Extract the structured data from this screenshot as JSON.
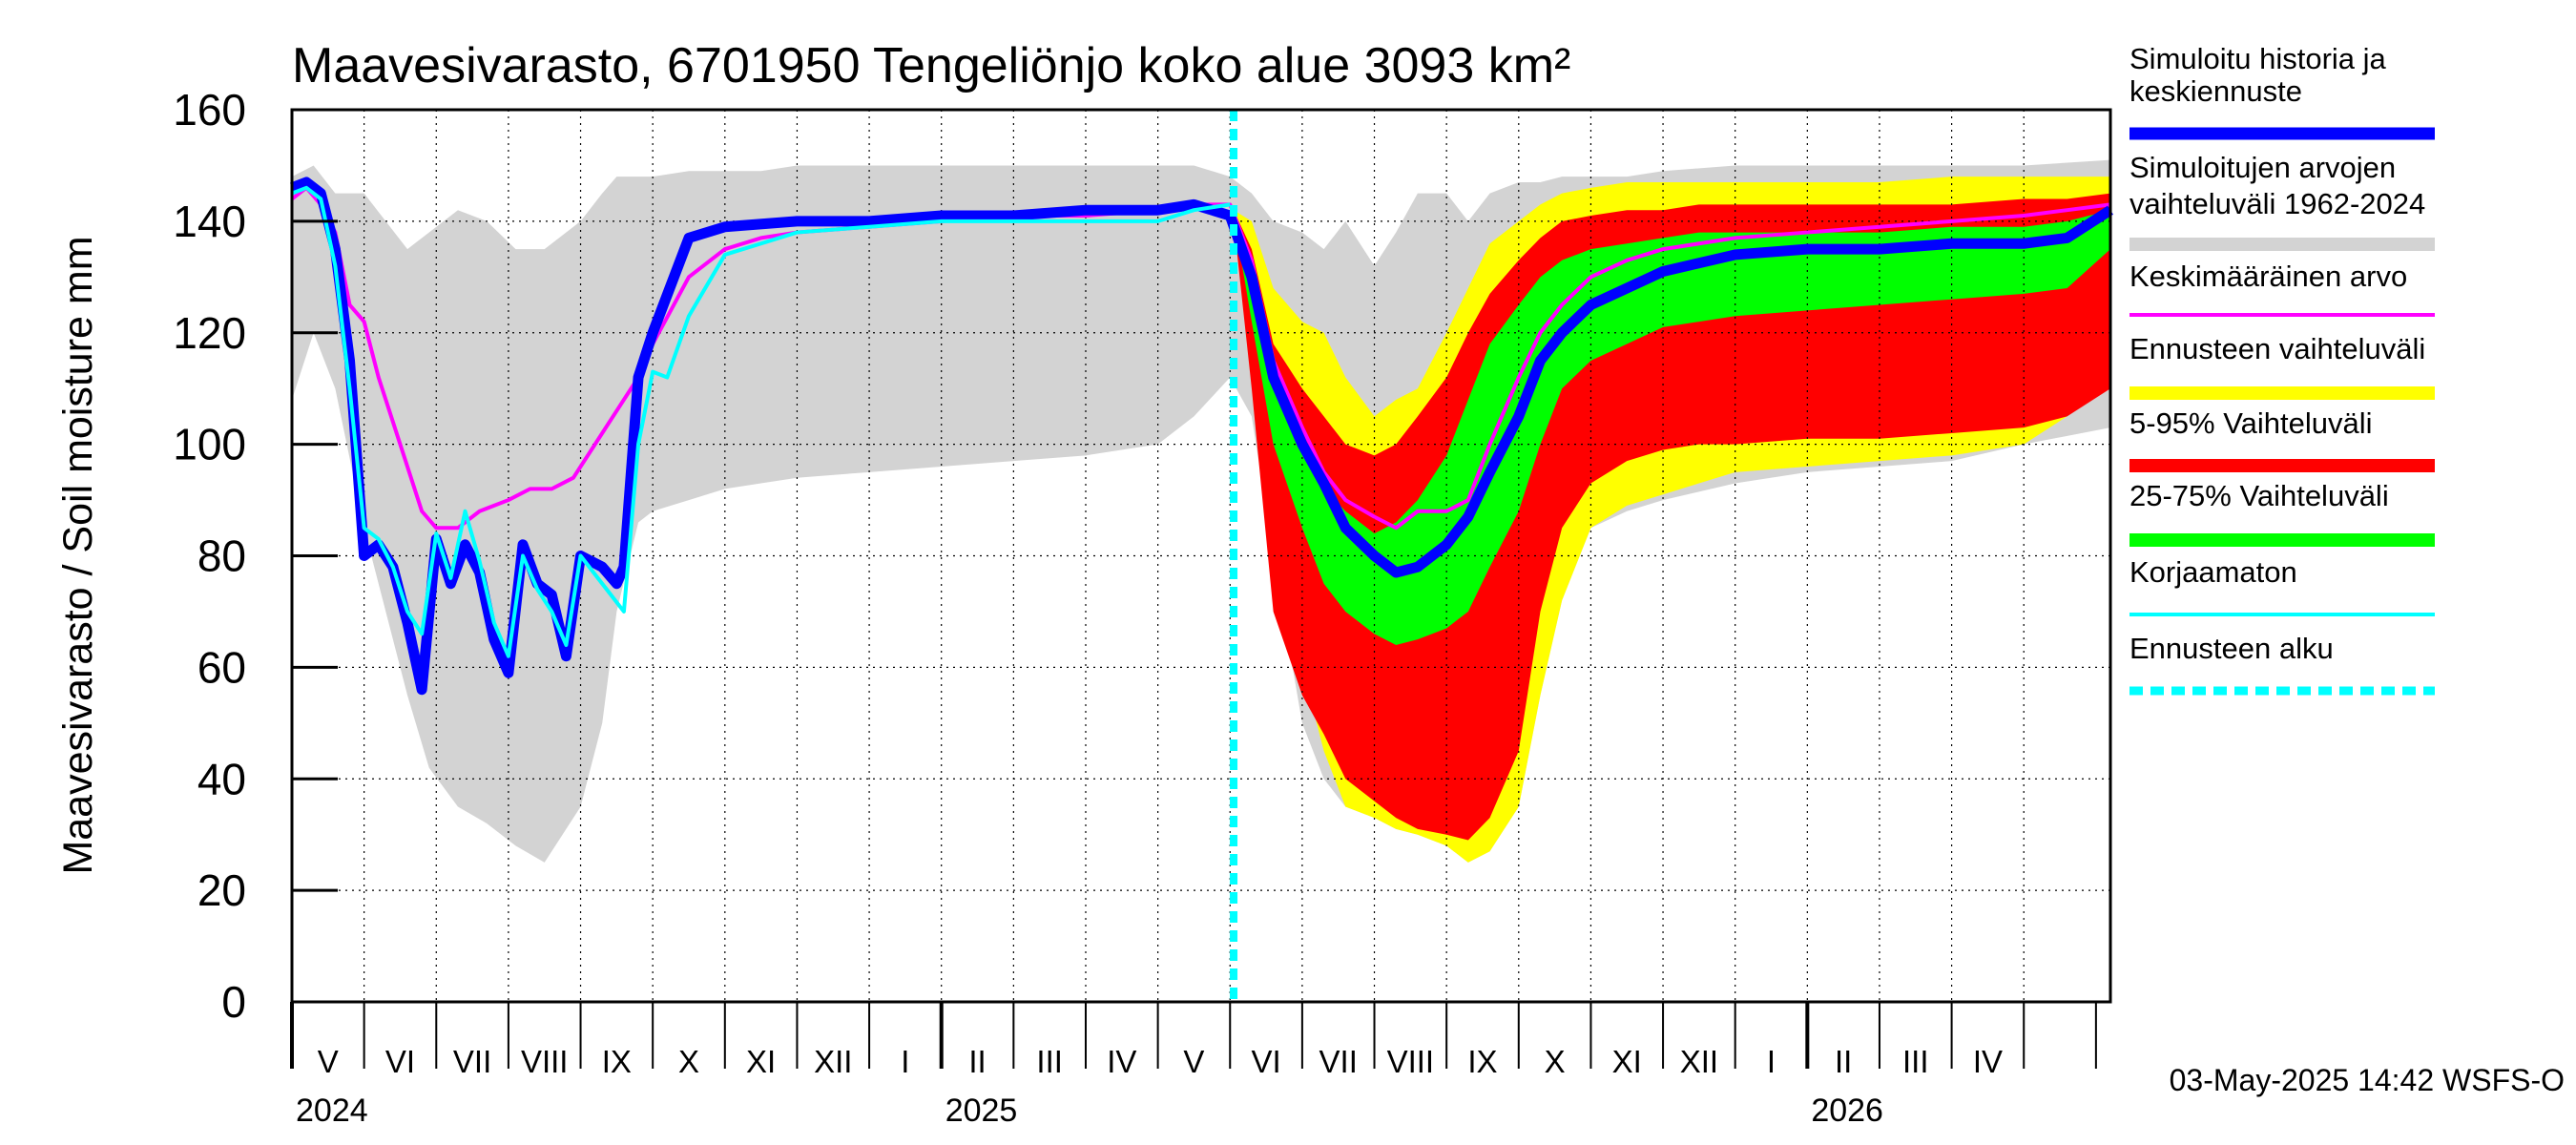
{
  "chart_data": {
    "type": "area",
    "title": "Maavesivarasto, 6701950 Tengeliönjo koko alue 3093 km²",
    "ylabel": "Maavesivarasto / Soil moisture   mm",
    "xlabel": "",
    "ylim": [
      0,
      160
    ],
    "yticks": [
      0,
      20,
      40,
      60,
      80,
      100,
      120,
      140,
      160
    ],
    "grid": true,
    "x_unit": "months since 2024-04-01",
    "xlim": [
      0,
      25.2
    ],
    "forecast_start": 13.05,
    "month_labels": [
      "V",
      "VI",
      "VII",
      "VIII",
      "IX",
      "X",
      "XI",
      "XII",
      "I",
      "II",
      "III",
      "IV",
      "V",
      "VI",
      "VII",
      "VIII",
      "IX",
      "X",
      "XI",
      "XII",
      "I",
      "II",
      "III",
      "IV"
    ],
    "year_labels": [
      {
        "label": "2024",
        "x": 0
      },
      {
        "label": "2025",
        "x": 9
      },
      {
        "label": "2026",
        "x": 21
      }
    ],
    "timestamp": "03-May-2025 14:42 WSFS-O",
    "colors": {
      "history_range": "#d3d3d3",
      "forecast_range": "#ffff00",
      "p5_95": "#ff0000",
      "p25_75": "#00ff00",
      "mean": "#ff00ff",
      "uncorrected": "#00ffff",
      "simulated": "#0000ff"
    },
    "legend": [
      {
        "key": "simulated",
        "label": "Simuloitu historia ja keskiennuste",
        "label_lines": [
          "Simuloitu historia ja",
          "keskiennuste"
        ],
        "style": "thick"
      },
      {
        "key": "history_range",
        "label": "Simuloitujen arvojen vaihteluväli 1962-2024",
        "label_lines": [
          "Simuloitujen arvojen",
          "vaihteluväli 1962-2024"
        ],
        "style": "band"
      },
      {
        "key": "mean",
        "label": "Keskimääräinen arvo",
        "label_lines": [
          "Keskimääräinen arvo"
        ],
        "style": "thin"
      },
      {
        "key": "forecast_range",
        "label": "Ennusteen vaihteluväli",
        "label_lines": [
          "Ennusteen vaihteluväli"
        ],
        "style": "band"
      },
      {
        "key": "p5_95",
        "label": "5-95% Vaihteluväli",
        "label_lines": [
          "5-95% Vaihteluväli"
        ],
        "style": "band"
      },
      {
        "key": "p25_75",
        "label": "25-75% Vaihteluväli",
        "label_lines": [
          "25-75% Vaihteluväli"
        ],
        "style": "band"
      },
      {
        "key": "uncorrected",
        "label": "Korjaamaton",
        "label_lines": [
          "Korjaamaton"
        ],
        "style": "thin"
      },
      {
        "key": "forecast_start",
        "label": "Ennusteen alku",
        "label_lines": [
          "Ennusteen alku"
        ],
        "style": "dashed"
      }
    ],
    "series": {
      "history_range": {
        "x": [
          0,
          0.3,
          0.6,
          1.0,
          1.3,
          1.6,
          1.9,
          2.3,
          2.7,
          3.1,
          3.5,
          4.0,
          4.3,
          4.5,
          4.8,
          5.0,
          5.5,
          6.0,
          6.5,
          7.0,
          8.0,
          9.0,
          10.0,
          11.0,
          12.0,
          12.5,
          13.0,
          13.3,
          13.6,
          14.0,
          14.3,
          14.6,
          15.0,
          15.3,
          15.6,
          16.0,
          16.3,
          16.6,
          17.0,
          17.3,
          17.6,
          18.0,
          18.5,
          19.0,
          20.0,
          21.0,
          22.0,
          23.0,
          24.0,
          25.2
        ],
        "lower": [
          108,
          120,
          110,
          85,
          70,
          55,
          42,
          35,
          32,
          28,
          25,
          35,
          50,
          70,
          86,
          88,
          90,
          92,
          93,
          94,
          95,
          96,
          97,
          98,
          100,
          105,
          112,
          105,
          80,
          50,
          40,
          35,
          33,
          31,
          30,
          28,
          25,
          27,
          35,
          55,
          72,
          85,
          88,
          90,
          93,
          95,
          96,
          97,
          100,
          103
        ],
        "upper": [
          148,
          150,
          145,
          145,
          140,
          135,
          138,
          142,
          140,
          135,
          135,
          140,
          145,
          148,
          148,
          148,
          149,
          149,
          149,
          150,
          150,
          150,
          150,
          150,
          150,
          150,
          148,
          145,
          140,
          138,
          135,
          140,
          132,
          138,
          145,
          145,
          140,
          145,
          147,
          147,
          148,
          148,
          148,
          149,
          150,
          150,
          150,
          150,
          150,
          151
        ]
      },
      "forecast_range": {
        "x": [
          13.05,
          13.3,
          13.6,
          14.0,
          14.3,
          14.6,
          15.0,
          15.3,
          15.6,
          16.0,
          16.3,
          16.6,
          17.0,
          17.3,
          17.6,
          18.0,
          18.5,
          19.0,
          19.5,
          20.0,
          21.0,
          22.0,
          23.0,
          24.0,
          24.6,
          25.2
        ],
        "lower": [
          140,
          120,
          85,
          60,
          45,
          35,
          33,
          31,
          30,
          28,
          25,
          27,
          35,
          55,
          72,
          85,
          89,
          91,
          93,
          95,
          96,
          97,
          98,
          100,
          105,
          120
        ],
        "upper": [
          142,
          140,
          128,
          122,
          120,
          112,
          105,
          108,
          110,
          120,
          128,
          136,
          140,
          143,
          145,
          146,
          147,
          147,
          147,
          147,
          147,
          147,
          148,
          148,
          148,
          148
        ]
      },
      "p5_95": {
        "x": [
          13.05,
          13.3,
          13.6,
          14.0,
          14.3,
          14.6,
          15.0,
          15.3,
          15.6,
          16.0,
          16.3,
          16.6,
          17.0,
          17.3,
          17.6,
          18.0,
          18.5,
          19.0,
          19.5,
          20.0,
          21.0,
          22.0,
          23.0,
          24.0,
          24.6,
          25.2
        ],
        "lower": [
          140,
          110,
          70,
          55,
          48,
          40,
          36,
          33,
          31,
          30,
          29,
          33,
          45,
          70,
          85,
          93,
          97,
          99,
          100,
          100,
          101,
          101,
          102,
          103,
          105,
          110
        ],
        "upper": [
          142,
          135,
          118,
          110,
          105,
          100,
          98,
          100,
          105,
          112,
          120,
          127,
          133,
          137,
          140,
          141,
          142,
          142,
          143,
          143,
          143,
          143,
          143,
          144,
          144,
          145
        ]
      },
      "p25_75": {
        "x": [
          13.05,
          13.3,
          13.6,
          14.0,
          14.3,
          14.6,
          15.0,
          15.3,
          15.6,
          16.0,
          16.3,
          16.6,
          17.0,
          17.3,
          17.6,
          18.0,
          18.5,
          19.0,
          19.5,
          20.0,
          21.0,
          22.0,
          23.0,
          24.0,
          24.6,
          25.2
        ],
        "lower": [
          141,
          122,
          100,
          85,
          75,
          70,
          66,
          64,
          65,
          67,
          70,
          78,
          88,
          100,
          110,
          115,
          118,
          121,
          122,
          123,
          124,
          125,
          126,
          127,
          128,
          135
        ],
        "upper": [
          142,
          132,
          112,
          100,
          92,
          88,
          84,
          86,
          90,
          98,
          108,
          118,
          125,
          130,
          133,
          135,
          136,
          137,
          138,
          138,
          138,
          138,
          139,
          139,
          140,
          142
        ]
      },
      "simulated": {
        "x": [
          0,
          0.2,
          0.4,
          0.6,
          0.8,
          1.0,
          1.2,
          1.4,
          1.6,
          1.8,
          2.0,
          2.2,
          2.4,
          2.6,
          2.8,
          3.0,
          3.2,
          3.4,
          3.6,
          3.8,
          4.0,
          4.3,
          4.5,
          4.6,
          4.8,
          5.0,
          5.5,
          6.0,
          7.0,
          8.0,
          9.0,
          10.0,
          11.0,
          12.0,
          12.5,
          13.0,
          13.3,
          13.6,
          14.0,
          14.3,
          14.6,
          15.0,
          15.3,
          15.6,
          16.0,
          16.3,
          16.6,
          17.0,
          17.3,
          17.6,
          18.0,
          19.0,
          20.0,
          21.0,
          22.0,
          23.0,
          24.0,
          24.6,
          25.2
        ],
        "y": [
          146,
          147,
          145,
          135,
          115,
          80,
          82,
          78,
          68,
          56,
          83,
          75,
          82,
          77,
          65,
          59,
          82,
          75,
          73,
          62,
          80,
          78,
          75,
          78,
          112,
          120,
          137,
          139,
          140,
          140,
          141,
          141,
          142,
          142,
          143,
          141,
          130,
          112,
          100,
          93,
          85,
          80,
          77,
          78,
          82,
          87,
          95,
          105,
          115,
          120,
          125,
          131,
          134,
          135,
          135,
          136,
          136,
          137,
          142
        ]
      },
      "mean": {
        "x": [
          0,
          0.2,
          0.4,
          0.6,
          0.8,
          1.0,
          1.2,
          1.5,
          1.8,
          2.0,
          2.3,
          2.6,
          3.0,
          3.3,
          3.6,
          3.9,
          4.2,
          4.5,
          4.8,
          5.0,
          5.5,
          6.0,
          6.5,
          7.0,
          8.0,
          9.0,
          10.0,
          11.0,
          12.0,
          12.5,
          13.0,
          13.3,
          13.6,
          14.0,
          14.3,
          14.6,
          15.0,
          15.3,
          15.6,
          16.0,
          16.3,
          16.6,
          17.0,
          17.3,
          17.6,
          18.0,
          18.5,
          19.0,
          20.0,
          21.0,
          22.0,
          23.0,
          24.0,
          24.6,
          25.2
        ],
        "y": [
          144,
          146,
          143,
          138,
          125,
          122,
          112,
          100,
          88,
          85,
          85,
          88,
          90,
          92,
          92,
          94,
          100,
          106,
          112,
          118,
          130,
          135,
          137,
          138,
          139,
          140,
          141,
          141,
          142,
          143,
          143,
          133,
          115,
          103,
          95,
          90,
          87,
          85,
          88,
          88,
          90,
          100,
          112,
          120,
          125,
          130,
          133,
          135,
          137,
          138,
          139,
          140,
          141,
          142,
          143
        ]
      },
      "uncorrected": {
        "x": [
          0,
          0.2,
          0.4,
          0.6,
          0.8,
          1.0,
          1.2,
          1.4,
          1.6,
          1.8,
          2.0,
          2.2,
          2.4,
          2.6,
          2.8,
          3.0,
          3.2,
          3.4,
          3.6,
          3.8,
          4.0,
          4.3,
          4.6,
          4.8,
          5.0,
          5.2,
          5.5,
          6.0,
          7.0,
          8.0,
          9.0,
          10.0,
          11.0,
          12.0,
          12.5,
          13.0
        ],
        "y": [
          145,
          146,
          144,
          132,
          110,
          85,
          83,
          78,
          70,
          66,
          84,
          76,
          88,
          79,
          68,
          62,
          80,
          74,
          70,
          64,
          80,
          75,
          70,
          100,
          113,
          112,
          123,
          134,
          138,
          139,
          140,
          140,
          140,
          140,
          142,
          143
        ]
      }
    }
  }
}
